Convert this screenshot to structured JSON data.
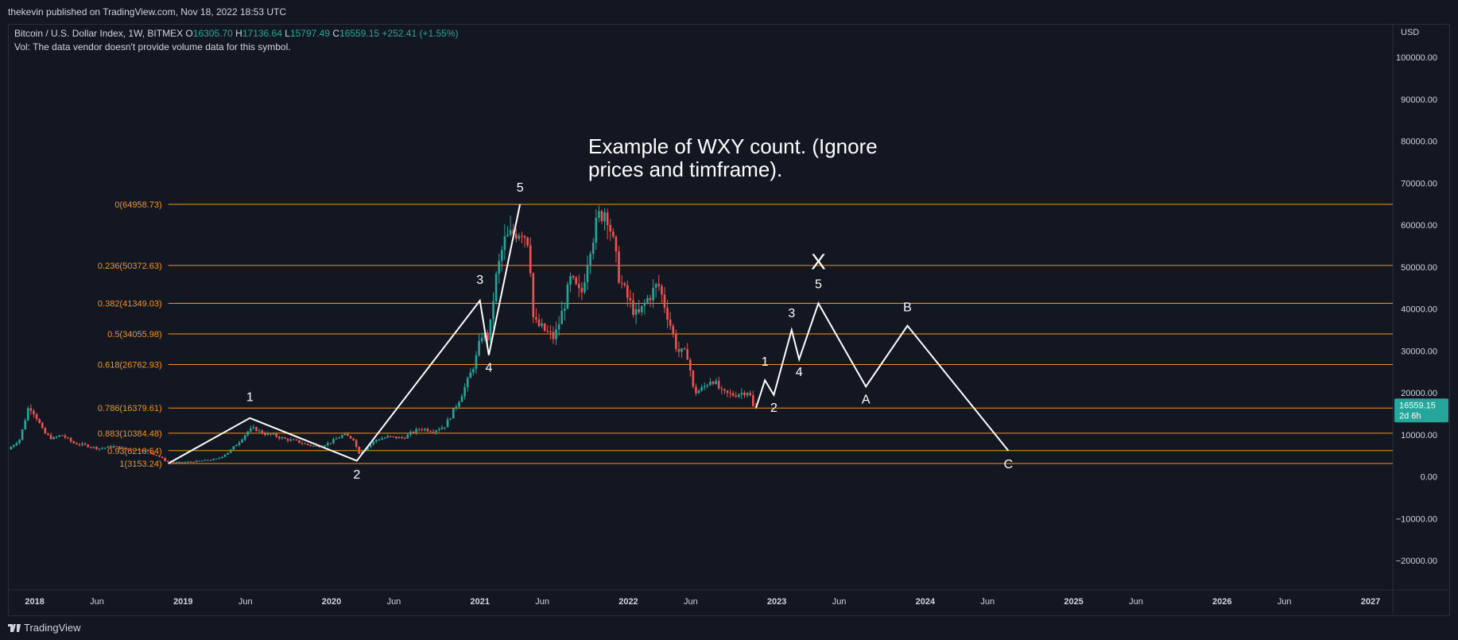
{
  "header": {
    "publisher_line": "thekevin published on TradingView.com, Nov 18, 2022 18:53 UTC"
  },
  "legend": {
    "symbol": "Bitcoin / U.S. Dollar Index, 1W, BITMEX",
    "o_label": "O",
    "o": "16305.70",
    "h_label": "H",
    "h": "17136.64",
    "l_label": "L",
    "l": "15797.49",
    "c_label": "C",
    "c": "16559.15",
    "change": "+252.41 (+1.55%)",
    "vol_note": "Vol: The data vendor doesn't provide volume data for this symbol."
  },
  "footer": {
    "brand": "TradingView"
  },
  "colors": {
    "background": "#131722",
    "up": "#26a69a",
    "down": "#ef5350",
    "fib": "#f7931a",
    "annotation": "#ffffff",
    "axis_text": "#d1d4dc",
    "price_badge": "#26a69a"
  },
  "chart_data": {
    "type": "candlestick",
    "title": "",
    "xlabel": "",
    "ylabel": "",
    "currency_label": "USD",
    "ylim": [
      -27000,
      108000
    ],
    "xlim": [
      2017.82,
      2027.15
    ],
    "y_ticks": [
      -20000,
      -10000,
      0,
      10000,
      20000,
      30000,
      40000,
      50000,
      60000,
      70000,
      80000,
      90000,
      100000
    ],
    "y_tick_labels": [
      "−20000.00",
      "−10000.00",
      "0.00",
      "10000.00",
      "20000.00",
      "30000.00",
      "40000.00",
      "50000.00",
      "60000.00",
      "70000.00",
      "80000.00",
      "90000.00",
      "100000.00"
    ],
    "x_ticks": [
      {
        "t": 2018.0,
        "label": "2018",
        "major": true
      },
      {
        "t": 2018.42,
        "label": "Jun",
        "major": false
      },
      {
        "t": 2019.0,
        "label": "2019",
        "major": true
      },
      {
        "t": 2019.42,
        "label": "Jun",
        "major": false
      },
      {
        "t": 2020.0,
        "label": "2020",
        "major": true
      },
      {
        "t": 2020.42,
        "label": "Jun",
        "major": false
      },
      {
        "t": 2021.0,
        "label": "2021",
        "major": true
      },
      {
        "t": 2021.42,
        "label": "Jun",
        "major": false
      },
      {
        "t": 2022.0,
        "label": "2022",
        "major": true
      },
      {
        "t": 2022.42,
        "label": "Jun",
        "major": false
      },
      {
        "t": 2023.0,
        "label": "2023",
        "major": true
      },
      {
        "t": 2023.42,
        "label": "Jun",
        "major": false
      },
      {
        "t": 2024.0,
        "label": "2024",
        "major": true
      },
      {
        "t": 2024.42,
        "label": "Jun",
        "major": false
      },
      {
        "t": 2025.0,
        "label": "2025",
        "major": true
      },
      {
        "t": 2025.42,
        "label": "Jun",
        "major": false
      },
      {
        "t": 2026.0,
        "label": "2026",
        "major": true
      },
      {
        "t": 2026.42,
        "label": "Jun",
        "major": false
      },
      {
        "t": 2027.0,
        "label": "2027",
        "major": true
      }
    ],
    "last_price": {
      "value": "16559.15",
      "countdown": "2d 6h",
      "y": 16559.15
    },
    "price_path": [
      [
        2017.84,
        6500
      ],
      [
        2017.92,
        9000
      ],
      [
        2017.98,
        17000
      ],
      [
        2018.02,
        15000
      ],
      [
        2018.08,
        10500
      ],
      [
        2018.14,
        9000
      ],
      [
        2018.2,
        10000
      ],
      [
        2018.28,
        8000
      ],
      [
        2018.36,
        7500
      ],
      [
        2018.45,
        6700
      ],
      [
        2018.55,
        7200
      ],
      [
        2018.65,
        6500
      ],
      [
        2018.75,
        6400
      ],
      [
        2018.85,
        5000
      ],
      [
        2018.9,
        3800
      ],
      [
        2018.96,
        3300
      ],
      [
        2019.05,
        3500
      ],
      [
        2019.15,
        3800
      ],
      [
        2019.25,
        4200
      ],
      [
        2019.33,
        6000
      ],
      [
        2019.4,
        8500
      ],
      [
        2019.46,
        11000
      ],
      [
        2019.5,
        11500
      ],
      [
        2019.56,
        10300
      ],
      [
        2019.62,
        10000
      ],
      [
        2019.7,
        9000
      ],
      [
        2019.78,
        8500
      ],
      [
        2019.85,
        7700
      ],
      [
        2019.92,
        7200
      ],
      [
        2020.0,
        8000
      ],
      [
        2020.1,
        10000
      ],
      [
        2020.17,
        9000
      ],
      [
        2020.2,
        5500
      ],
      [
        2020.25,
        6800
      ],
      [
        2020.32,
        8800
      ],
      [
        2020.4,
        9500
      ],
      [
        2020.5,
        9200
      ],
      [
        2020.56,
        10500
      ],
      [
        2020.62,
        11500
      ],
      [
        2020.7,
        11000
      ],
      [
        2020.78,
        12000
      ],
      [
        2020.83,
        15000
      ],
      [
        2020.88,
        18500
      ],
      [
        2020.94,
        23000
      ],
      [
        2021.0,
        29000
      ],
      [
        2021.03,
        34000
      ],
      [
        2021.08,
        33000
      ],
      [
        2021.12,
        46000
      ],
      [
        2021.18,
        56000
      ],
      [
        2021.24,
        58000
      ],
      [
        2021.3,
        59000
      ],
      [
        2021.35,
        56000
      ],
      [
        2021.38,
        37000
      ],
      [
        2021.45,
        35000
      ],
      [
        2021.52,
        33000
      ],
      [
        2021.58,
        40000
      ],
      [
        2021.63,
        47000
      ],
      [
        2021.7,
        43000
      ],
      [
        2021.76,
        55000
      ],
      [
        2021.82,
        62000
      ],
      [
        2021.87,
        64000
      ],
      [
        2021.91,
        57000
      ],
      [
        2021.96,
        47000
      ],
      [
        2022.02,
        42000
      ],
      [
        2022.08,
        38000
      ],
      [
        2022.14,
        42000
      ],
      [
        2022.22,
        46000
      ],
      [
        2022.28,
        39000
      ],
      [
        2022.35,
        30000
      ],
      [
        2022.42,
        29000
      ],
      [
        2022.46,
        20000
      ],
      [
        2022.52,
        21000
      ],
      [
        2022.58,
        23500
      ],
      [
        2022.65,
        20000
      ],
      [
        2022.72,
        19500
      ],
      [
        2022.78,
        20000
      ],
      [
        2022.83,
        20500
      ],
      [
        2022.86,
        16500
      ]
    ],
    "fib_levels": [
      {
        "label": "0(64958.73)",
        "value": 64958.73
      },
      {
        "label": "0.236(50372.63)",
        "value": 50372.63
      },
      {
        "label": "0.382(41349.03)",
        "value": 41349.03
      },
      {
        "label": "0.5(34055.98)",
        "value": 34055.98
      },
      {
        "label": "0.618(26762.93)",
        "value": 26762.93
      },
      {
        "label": "0.786(16379.61)",
        "value": 16379.61
      },
      {
        "label": "0.883(10384.48)",
        "value": 10384.48
      },
      {
        "label": "0.93(6218.54)",
        "value": 6218.54
      },
      {
        "label": "1(3153.24)",
        "value": 3153.24
      }
    ],
    "fib_x_start": 2018.9,
    "wave_paths": [
      [
        [
          2018.9,
          3153
        ],
        [
          2019.45,
          14000
        ],
        [
          2020.17,
          3800
        ],
        [
          2021.0,
          42000
        ],
        [
          2021.06,
          29000
        ],
        [
          2021.27,
          64958
        ]
      ],
      [
        [
          2022.86,
          16400
        ],
        [
          2022.92,
          23000
        ],
        [
          2022.98,
          19500
        ],
        [
          2023.1,
          35000
        ],
        [
          2023.15,
          28000
        ],
        [
          2023.28,
          41349
        ],
        [
          2023.6,
          21500
        ],
        [
          2023.88,
          36000
        ],
        [
          2024.56,
          6200
        ]
      ]
    ],
    "wave_labels": [
      {
        "text": "1",
        "t": 2019.45,
        "y": 18000
      },
      {
        "text": "2",
        "t": 2020.17,
        "y": -500
      },
      {
        "text": "3",
        "t": 2021.0,
        "y": 46000
      },
      {
        "text": "4",
        "t": 2021.06,
        "y": 25000
      },
      {
        "text": "5",
        "t": 2021.27,
        "y": 68000
      },
      {
        "text": "1",
        "t": 2022.92,
        "y": 26500
      },
      {
        "text": "2",
        "t": 2022.98,
        "y": 15500
      },
      {
        "text": "3",
        "t": 2023.1,
        "y": 38000
      },
      {
        "text": "4",
        "t": 2023.15,
        "y": 24000
      },
      {
        "text": "5",
        "t": 2023.28,
        "y": 45000
      },
      {
        "text": "X",
        "t": 2023.28,
        "y": 49500,
        "big": true
      },
      {
        "text": "A",
        "t": 2023.6,
        "y": 17500
      },
      {
        "text": "B",
        "t": 2023.88,
        "y": 39500
      },
      {
        "text": "C",
        "t": 2024.56,
        "y": 2000
      }
    ],
    "annotation_text": "Example of WXY count. (Ignore\nprices and timframe)."
  }
}
